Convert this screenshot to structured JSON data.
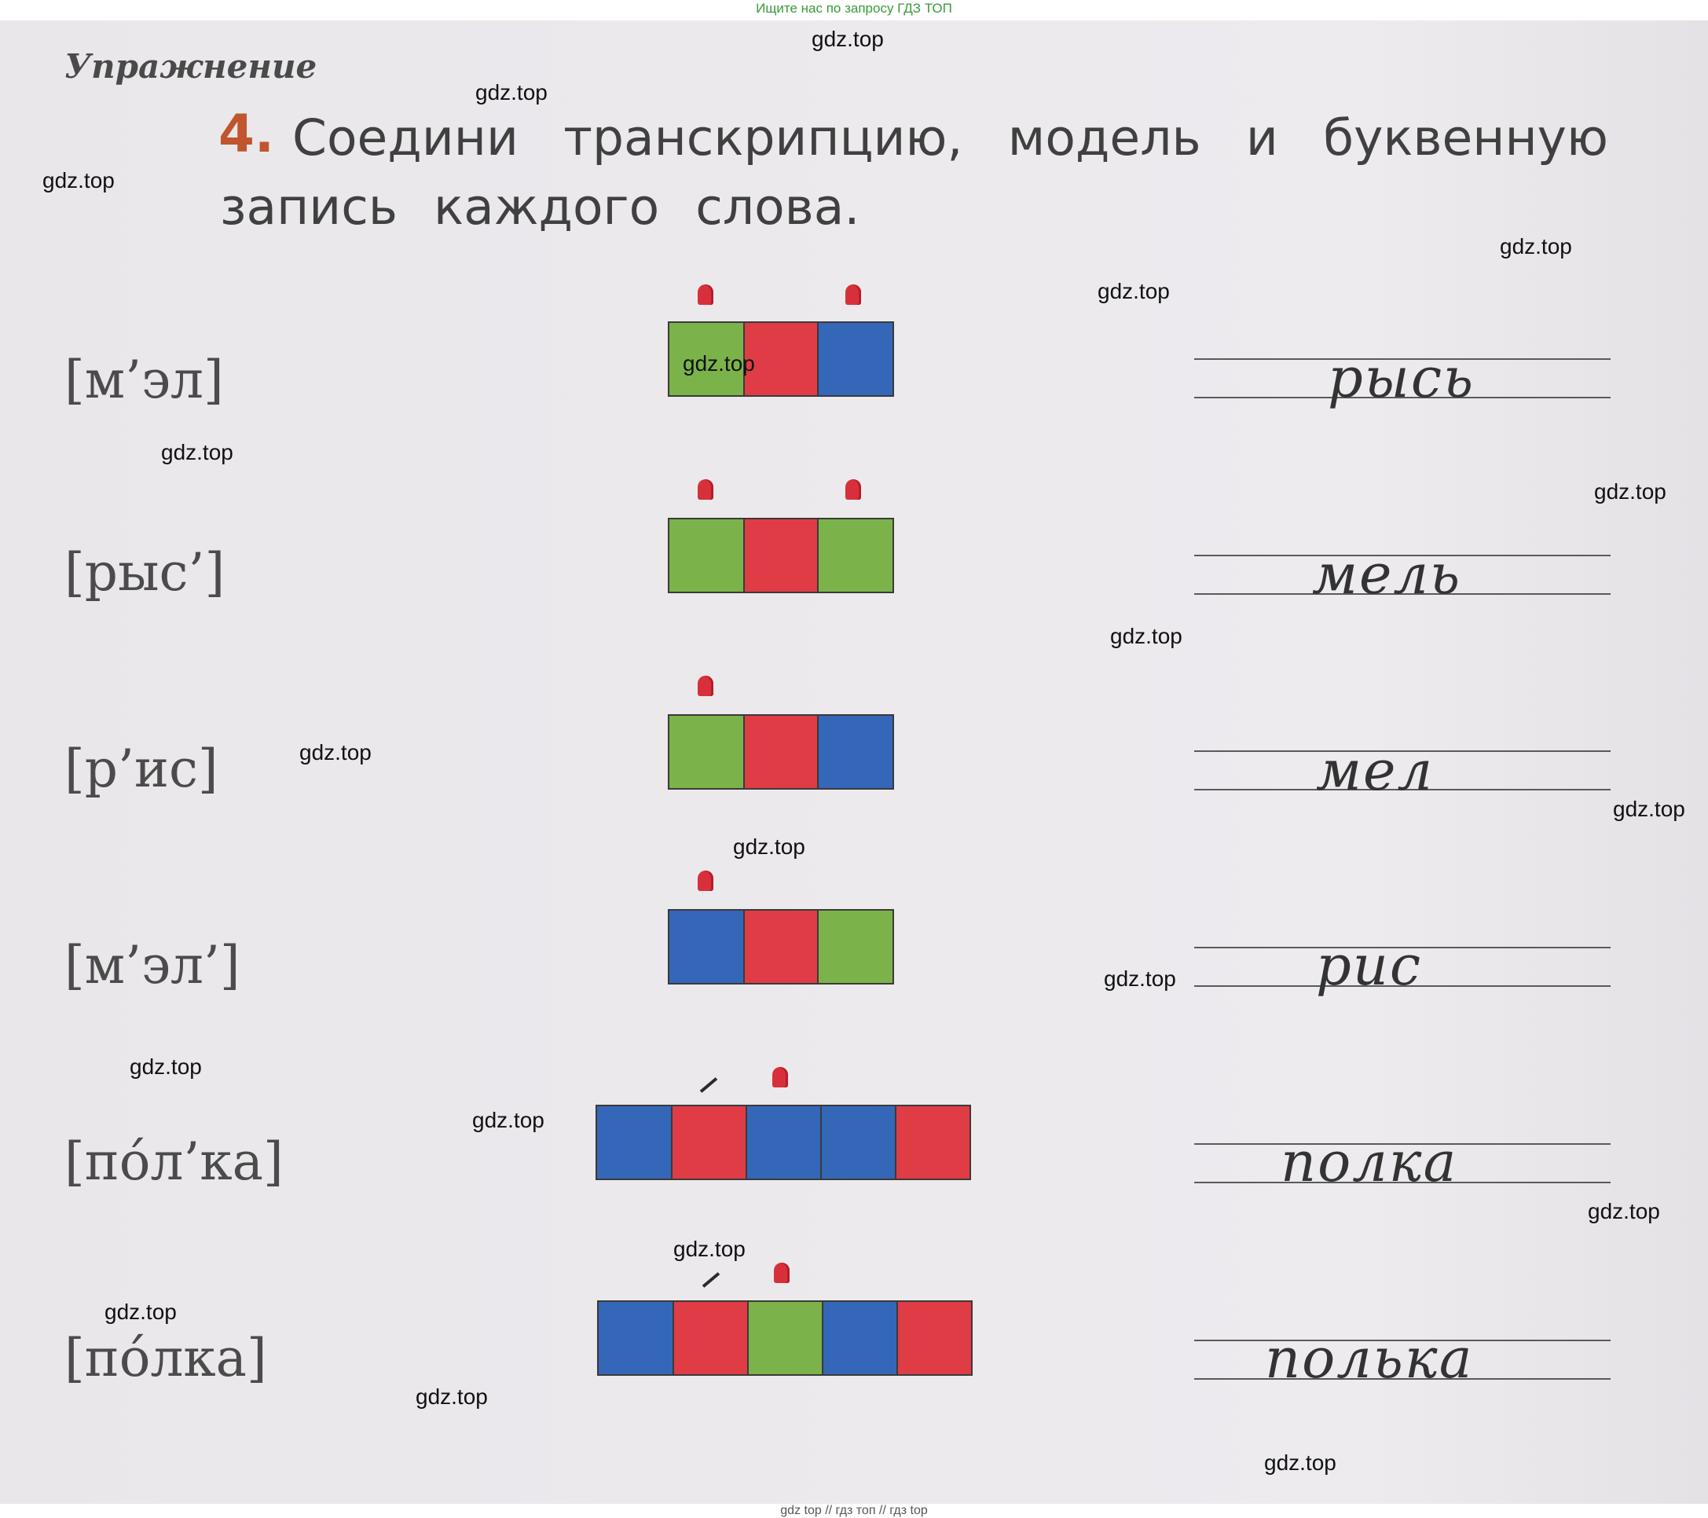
{
  "top_banner": "Ищите нас по запросу ГДЗ ТОП",
  "exercise_label": "Упражнение",
  "task": {
    "number": "4.",
    "line1": "Соедини транскрипцию, модель и буквенную",
    "line2": "запись каждого слова."
  },
  "transcriptions": [
    "[м’эл]",
    "[рыс’]",
    "[р’ис]",
    "[м’эл’]",
    "[по́л’ка]",
    "[по́лка]"
  ],
  "models": [
    [
      "green",
      "red",
      "blue"
    ],
    [
      "green",
      "red",
      "green"
    ],
    [
      "green",
      "red",
      "blue"
    ],
    [
      "blue",
      "red",
      "green"
    ],
    [
      "blue",
      "red",
      "blue",
      "blue",
      "red"
    ],
    [
      "blue",
      "red",
      "green",
      "blue",
      "red"
    ]
  ],
  "words": [
    "рысь",
    "мель",
    "мел",
    "рис",
    "полка",
    "полька"
  ],
  "watermark": "gdz.top",
  "bottom_banner": "gdz top  //  гдз топ  //  гдз top",
  "colors": {
    "green": "#7bb34a",
    "red": "#e03c46",
    "blue": "#3467b8",
    "task_number": "#c0552e"
  }
}
